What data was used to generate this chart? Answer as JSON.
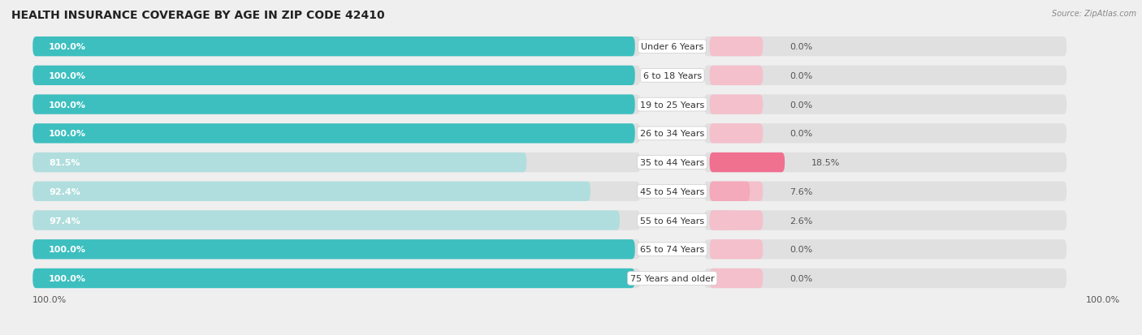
{
  "title": "HEALTH INSURANCE COVERAGE BY AGE IN ZIP CODE 42410",
  "source": "Source: ZipAtlas.com",
  "categories": [
    "Under 6 Years",
    "6 to 18 Years",
    "19 to 25 Years",
    "26 to 34 Years",
    "35 to 44 Years",
    "45 to 54 Years",
    "55 to 64 Years",
    "65 to 74 Years",
    "75 Years and older"
  ],
  "with_coverage": [
    100.0,
    100.0,
    100.0,
    100.0,
    81.5,
    92.4,
    97.4,
    100.0,
    100.0
  ],
  "without_coverage": [
    0.0,
    0.0,
    0.0,
    0.0,
    18.5,
    7.6,
    2.6,
    0.0,
    0.0
  ],
  "color_with": "#3dbfbf",
  "color_with_light": "#b0dede",
  "color_without_strong": "#f07090",
  "color_without_light": "#f4aabb",
  "color_without_tiny": "#f4c0cc",
  "bg_color": "#efefef",
  "bar_bg": "#e0e0e0",
  "title_fontsize": 10,
  "label_fontsize": 8,
  "tick_fontsize": 8,
  "legend_fontsize": 8
}
